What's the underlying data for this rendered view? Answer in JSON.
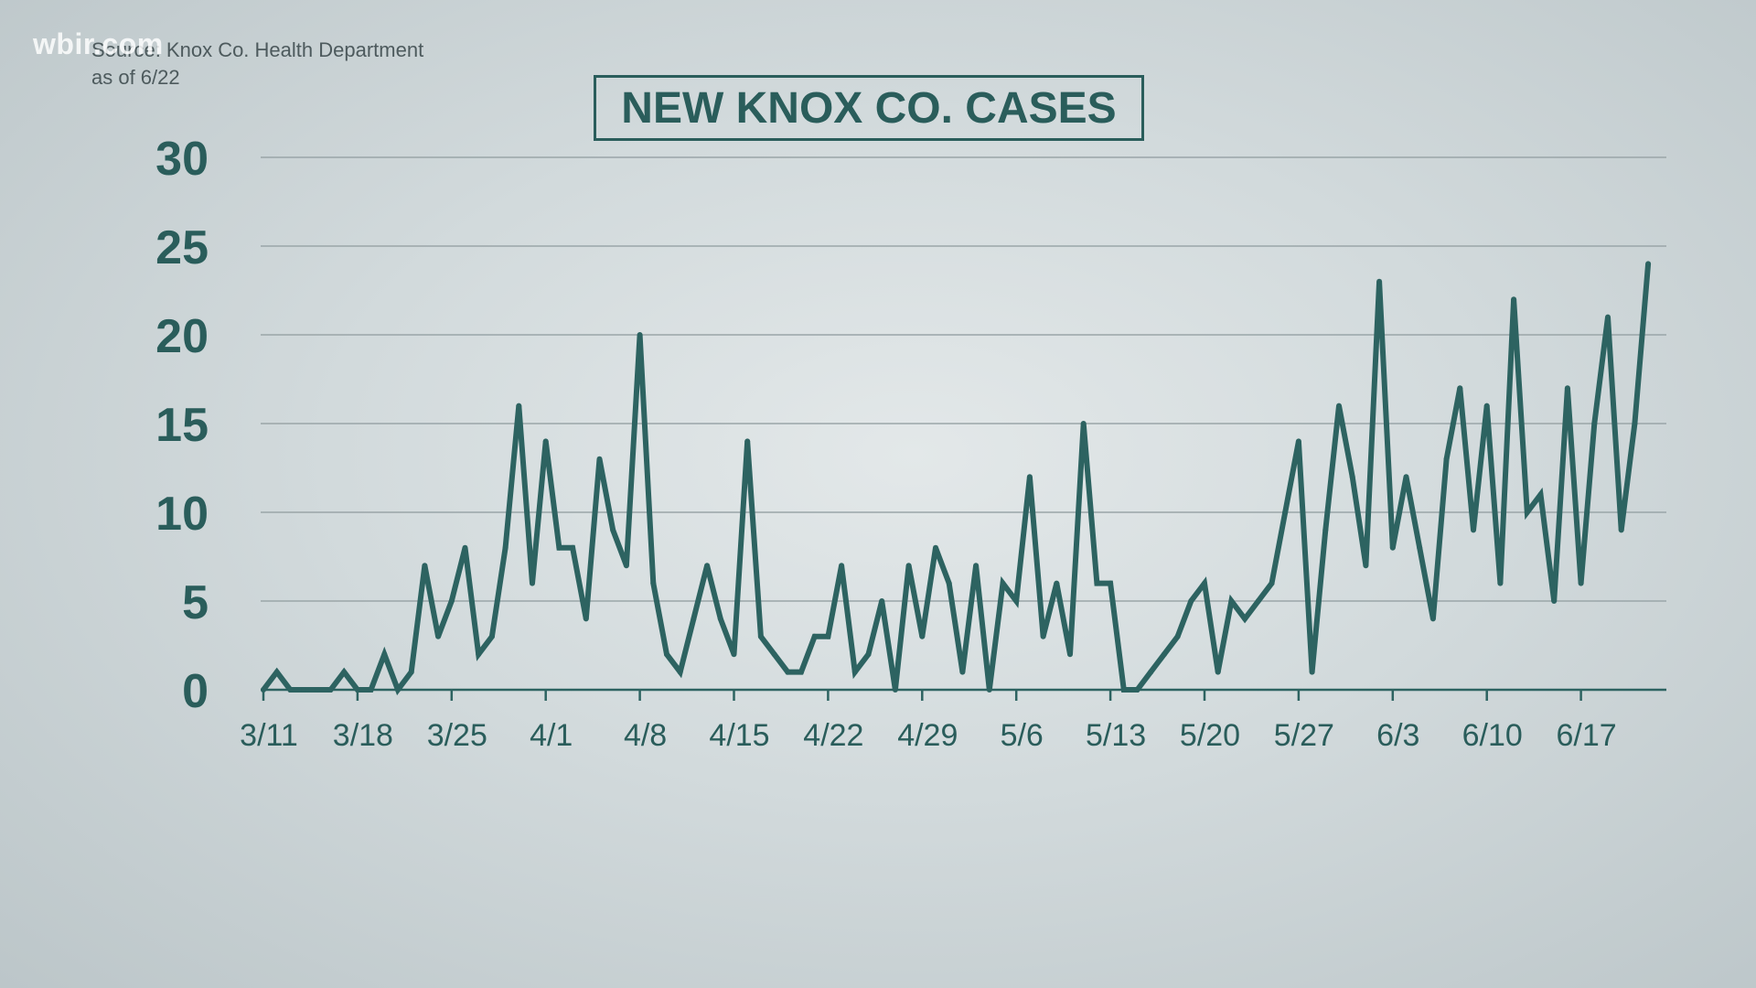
{
  "source": {
    "line1": "Source: Knox Co. Health Department",
    "line2": "as of 6/22"
  },
  "watermark": "wbir.com",
  "chart_data": {
    "type": "line",
    "title": "NEW KNOX CO. CASES",
    "xlabel": "",
    "ylabel": "",
    "ylim": [
      0,
      30
    ],
    "yticks": [
      "0",
      "5",
      "10",
      "15",
      "20",
      "25",
      "30"
    ],
    "grid": true,
    "legend": "none",
    "line_color": "#2d6361",
    "x_start": "3/11",
    "x_end": "6/22",
    "xticks": [
      "3/11",
      "3/18",
      "3/25",
      "4/1",
      "4/8",
      "4/15",
      "4/22",
      "4/29",
      "5/6",
      "5/13",
      "5/20",
      "5/27",
      "6/3",
      "6/10",
      "6/17"
    ],
    "series": [
      {
        "values": [
          0,
          1,
          0,
          0,
          0,
          0,
          1,
          0,
          0,
          2,
          0,
          1,
          7,
          3,
          5,
          8,
          2,
          3,
          8,
          16,
          6,
          14,
          8,
          8,
          4,
          13,
          9,
          7,
          20,
          6,
          2,
          1,
          4,
          7,
          4,
          2,
          14,
          3,
          2,
          1,
          1,
          3,
          3,
          7,
          1,
          2,
          5,
          0,
          7,
          3,
          8,
          6,
          1,
          7,
          0,
          6,
          5,
          12,
          3,
          6,
          2,
          15,
          6,
          6,
          0,
          0,
          1,
          2,
          3,
          5,
          6,
          1,
          5,
          4,
          5,
          6,
          10,
          14,
          1,
          9,
          16,
          12,
          7,
          23,
          8,
          12,
          8,
          4,
          13,
          17,
          9,
          16,
          6,
          22,
          10,
          11,
          5,
          17,
          6,
          15,
          21,
          9,
          15,
          24
        ]
      }
    ]
  }
}
